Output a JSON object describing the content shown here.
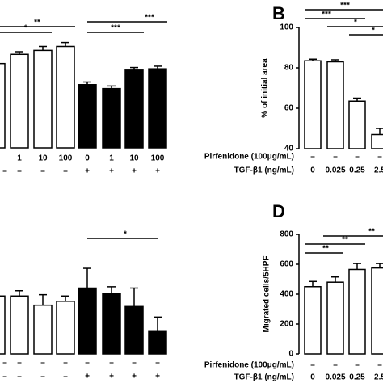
{
  "chart_data": [
    {
      "type": "bar",
      "ylim": [
        0,
        100
      ],
      "values": [
        64,
        71,
        74,
        77,
        48,
        45,
        59,
        60
      ],
      "errors": [
        3,
        2,
        3,
        3,
        2,
        2,
        2,
        2
      ],
      "colors": [
        "#ffffff",
        "#ffffff",
        "#ffffff",
        "#ffffff",
        "#000000",
        "#000000",
        "#000000",
        "#000000"
      ],
      "rows": [
        {
          "labels": [
            null,
            "1",
            "10",
            "100",
            "0",
            "1",
            "10",
            "100"
          ]
        },
        {
          "labels": [
            "–",
            "–",
            "–",
            "–",
            "+",
            "+",
            "+",
            "+"
          ]
        }
      ],
      "significance": [
        "**",
        "*",
        "***",
        "***"
      ]
    },
    {
      "type": "bar",
      "letter": "B",
      "y_label": "% of initial area",
      "ylim": [
        40,
        100
      ],
      "yticks": [
        40,
        60,
        80,
        100
      ],
      "values": [
        83.5,
        83,
        63.5,
        47
      ],
      "errors": [
        0.8,
        1,
        1.5,
        3
      ],
      "colors": [
        "#ffffff",
        "#ffffff",
        "#ffffff",
        "#ffffff"
      ],
      "rows": [
        {
          "name": "Pirfenidone (100μg/mL)",
          "labels": [
            "–",
            "–",
            "–",
            "–"
          ]
        },
        {
          "name": "TGF-β1 (ng/mL)",
          "labels": [
            "0",
            "0.025",
            "0.25",
            "2.5"
          ]
        }
      ],
      "significance": [
        "***",
        "***",
        "*",
        "*"
      ]
    },
    {
      "type": "bar",
      "ylim": [
        0,
        100
      ],
      "values": [
        44,
        44,
        37,
        40,
        50,
        46,
        36,
        17
      ],
      "errors": [
        4,
        4,
        8,
        4,
        15,
        5,
        14,
        11
      ],
      "colors": [
        "#ffffff",
        "#ffffff",
        "#ffffff",
        "#ffffff",
        "#000000",
        "#000000",
        "#000000",
        "#000000"
      ],
      "rows": [
        {
          "labels": [
            "–",
            "–",
            "–",
            "–",
            "–",
            "–",
            "–",
            "–"
          ]
        },
        {
          "labels": [
            "–",
            "–",
            "–",
            "–",
            "+",
            "+",
            "+",
            "+"
          ]
        }
      ],
      "significance": [
        "*"
      ]
    },
    {
      "type": "bar",
      "letter": "D",
      "y_label": "Migrated cells/5HPF",
      "ylim": [
        0,
        800
      ],
      "yticks": [
        0,
        200,
        400,
        600,
        800
      ],
      "values": [
        450,
        480,
        565,
        575
      ],
      "errors": [
        35,
        35,
        40,
        30
      ],
      "colors": [
        "#ffffff",
        "#ffffff",
        "#ffffff",
        "#ffffff"
      ],
      "rows": [
        {
          "name": "Pirfenidone (100μg/mL)",
          "labels": [
            "–",
            "–",
            "–",
            "–"
          ]
        },
        {
          "name": "TGF-β1 (ng/mL)",
          "labels": [
            "0",
            "0.025",
            "0.25",
            "2.5"
          ]
        }
      ],
      "significance": [
        "**",
        "**",
        "**"
      ]
    }
  ]
}
